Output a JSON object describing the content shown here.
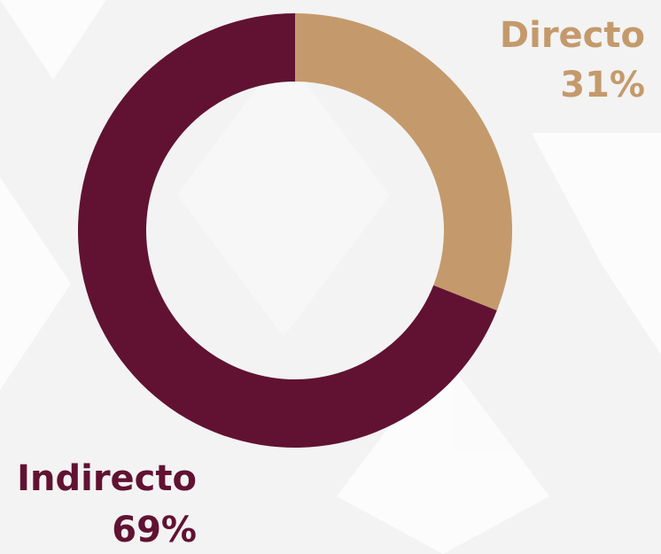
{
  "chart_data": {
    "type": "donut",
    "categories": [
      "Directo",
      "Indirecto"
    ],
    "values": [
      31,
      69
    ],
    "value_labels": [
      "31%",
      "69%"
    ],
    "colors": [
      "#c49a6c",
      "#611232"
    ]
  }
}
